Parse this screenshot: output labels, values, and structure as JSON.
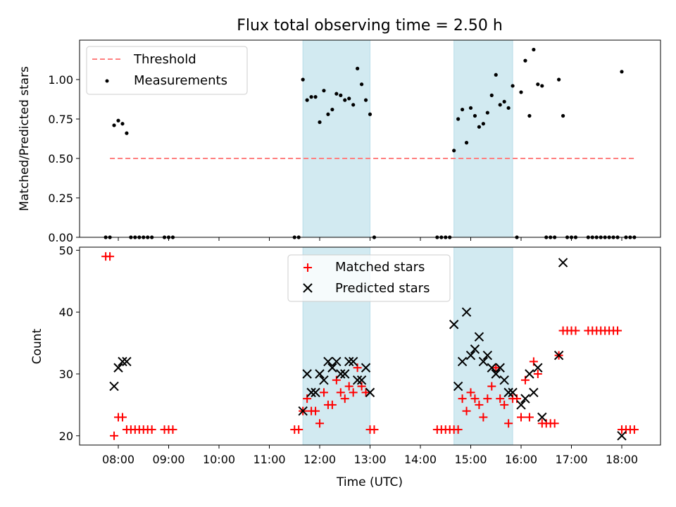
{
  "chart_data": [
    {
      "type": "scatter",
      "title": "Flux total observing time = 2.50 h",
      "xlabel": "",
      "ylabel": "Matched/Predicted stars",
      "ylim": [
        0,
        1.25
      ],
      "yticks": [
        "0.00",
        "0.25",
        "0.50",
        "0.75",
        "1.00"
      ],
      "legend_position": "top-left",
      "shaded_intervals": [
        [
          "11:40",
          "13:00"
        ],
        [
          "14:40",
          "15:50"
        ]
      ],
      "shade_color": "#add8e6",
      "series": [
        {
          "name": "Threshold",
          "style": "dashed-line",
          "color": "#ff7f7f",
          "points": [
            [
              "07:50",
              0.5
            ],
            [
              "18:15",
              0.5
            ]
          ]
        },
        {
          "name": "Measurements",
          "style": "dot",
          "color": "#000000",
          "points": [
            [
              "07:45",
              0
            ],
            [
              "07:50",
              0
            ],
            [
              "07:55",
              0.71
            ],
            [
              "08:00",
              0.74
            ],
            [
              "08:05",
              0.72
            ],
            [
              "08:10",
              0.66
            ],
            [
              "08:15",
              0
            ],
            [
              "08:20",
              0
            ],
            [
              "08:25",
              0
            ],
            [
              "08:30",
              0
            ],
            [
              "08:35",
              0
            ],
            [
              "08:40",
              0
            ],
            [
              "08:55",
              0
            ],
            [
              "09:00",
              0
            ],
            [
              "09:05",
              0
            ],
            [
              "11:30",
              0
            ],
            [
              "11:35",
              0
            ],
            [
              "11:40",
              1.0
            ],
            [
              "11:45",
              0.87
            ],
            [
              "11:50",
              0.89
            ],
            [
              "11:55",
              0.89
            ],
            [
              "12:00",
              0.73
            ],
            [
              "12:05",
              0.93
            ],
            [
              "12:10",
              0.78
            ],
            [
              "12:15",
              0.81
            ],
            [
              "12:20",
              0.91
            ],
            [
              "12:25",
              0.9
            ],
            [
              "12:30",
              0.87
            ],
            [
              "12:35",
              0.88
            ],
            [
              "12:40",
              0.84
            ],
            [
              "12:45",
              1.07
            ],
            [
              "12:50",
              0.97
            ],
            [
              "12:55",
              0.87
            ],
            [
              "13:00",
              0.78
            ],
            [
              "13:05",
              0
            ],
            [
              "14:20",
              0
            ],
            [
              "14:25",
              0
            ],
            [
              "14:30",
              0
            ],
            [
              "14:35",
              0
            ],
            [
              "14:40",
              0.55
            ],
            [
              "14:45",
              0.75
            ],
            [
              "14:50",
              0.81
            ],
            [
              "14:55",
              0.6
            ],
            [
              "15:00",
              0.82
            ],
            [
              "15:05",
              0.77
            ],
            [
              "15:10",
              0.7
            ],
            [
              "15:15",
              0.72
            ],
            [
              "15:20",
              0.79
            ],
            [
              "15:25",
              0.9
            ],
            [
              "15:30",
              1.03
            ],
            [
              "15:35",
              0.84
            ],
            [
              "15:40",
              0.86
            ],
            [
              "15:45",
              0.82
            ],
            [
              "15:50",
              0.96
            ],
            [
              "15:55",
              0
            ],
            [
              "16:00",
              0.92
            ],
            [
              "16:05",
              1.12
            ],
            [
              "16:10",
              0.77
            ],
            [
              "16:15",
              1.19
            ],
            [
              "16:20",
              0.97
            ],
            [
              "16:25",
              0.96
            ],
            [
              "16:30",
              0
            ],
            [
              "16:35",
              0
            ],
            [
              "16:40",
              0
            ],
            [
              "16:45",
              1.0
            ],
            [
              "16:50",
              0.77
            ],
            [
              "16:55",
              0
            ],
            [
              "17:00",
              0
            ],
            [
              "17:05",
              0
            ],
            [
              "17:20",
              0
            ],
            [
              "17:25",
              0
            ],
            [
              "17:30",
              0
            ],
            [
              "17:35",
              0
            ],
            [
              "17:40",
              0
            ],
            [
              "17:45",
              0
            ],
            [
              "17:50",
              0
            ],
            [
              "17:55",
              0
            ],
            [
              "18:00",
              1.05
            ],
            [
              "18:05",
              0
            ],
            [
              "18:10",
              0
            ],
            [
              "18:15",
              0
            ]
          ]
        }
      ]
    },
    {
      "type": "scatter",
      "title": "",
      "xlabel": "Time (UTC)",
      "ylabel": "Count",
      "ylim": [
        18.5,
        50.5
      ],
      "yticks": [
        "20",
        "30",
        "40",
        "50"
      ],
      "xticks": [
        "08:00",
        "09:00",
        "10:00",
        "11:00",
        "12:00",
        "13:00",
        "14:00",
        "15:00",
        "16:00",
        "17:00",
        "18:00"
      ],
      "legend_position": "top-center",
      "shaded_intervals": [
        [
          "11:40",
          "13:00"
        ],
        [
          "14:40",
          "15:50"
        ]
      ],
      "shade_color": "#add8e6",
      "series": [
        {
          "name": "Matched stars",
          "style": "plus",
          "color": "#ff0000",
          "points": [
            [
              "07:45",
              49
            ],
            [
              "07:50",
              49
            ],
            [
              "07:55",
              20
            ],
            [
              "08:00",
              23
            ],
            [
              "08:05",
              23
            ],
            [
              "08:10",
              21
            ],
            [
              "08:15",
              21
            ],
            [
              "08:20",
              21
            ],
            [
              "08:25",
              21
            ],
            [
              "08:30",
              21
            ],
            [
              "08:35",
              21
            ],
            [
              "08:40",
              21
            ],
            [
              "08:55",
              21
            ],
            [
              "09:00",
              21
            ],
            [
              "09:05",
              21
            ],
            [
              "11:30",
              21
            ],
            [
              "11:35",
              21
            ],
            [
              "11:40",
              24
            ],
            [
              "11:45",
              26
            ],
            [
              "11:50",
              24
            ],
            [
              "11:55",
              24
            ],
            [
              "12:00",
              22
            ],
            [
              "12:05",
              27
            ],
            [
              "12:10",
              25
            ],
            [
              "12:15",
              25
            ],
            [
              "12:20",
              29
            ],
            [
              "12:25",
              27
            ],
            [
              "12:30",
              26
            ],
            [
              "12:35",
              28
            ],
            [
              "12:40",
              27
            ],
            [
              "12:45",
              31
            ],
            [
              "12:50",
              28
            ],
            [
              "12:55",
              27
            ],
            [
              "13:00",
              21
            ],
            [
              "13:05",
              21
            ],
            [
              "14:20",
              21
            ],
            [
              "14:25",
              21
            ],
            [
              "14:30",
              21
            ],
            [
              "14:35",
              21
            ],
            [
              "14:40",
              21
            ],
            [
              "14:45",
              21
            ],
            [
              "14:50",
              26
            ],
            [
              "14:55",
              24
            ],
            [
              "15:00",
              27
            ],
            [
              "15:05",
              26
            ],
            [
              "15:10",
              25
            ],
            [
              "15:15",
              23
            ],
            [
              "15:20",
              26
            ],
            [
              "15:25",
              28
            ],
            [
              "15:30",
              31
            ],
            [
              "15:35",
              26
            ],
            [
              "15:40",
              25
            ],
            [
              "15:45",
              22
            ],
            [
              "15:50",
              26
            ],
            [
              "15:55",
              26
            ],
            [
              "16:00",
              23
            ],
            [
              "16:05",
              29
            ],
            [
              "16:10",
              23
            ],
            [
              "16:15",
              32
            ],
            [
              "16:20",
              30
            ],
            [
              "16:25",
              22
            ],
            [
              "16:30",
              22
            ],
            [
              "16:35",
              22
            ],
            [
              "16:40",
              22
            ],
            [
              "16:45",
              33
            ],
            [
              "16:50",
              37
            ],
            [
              "16:55",
              37
            ],
            [
              "17:00",
              37
            ],
            [
              "17:05",
              37
            ],
            [
              "17:20",
              37
            ],
            [
              "17:25",
              37
            ],
            [
              "17:30",
              37
            ],
            [
              "17:35",
              37
            ],
            [
              "17:40",
              37
            ],
            [
              "17:45",
              37
            ],
            [
              "17:50",
              37
            ],
            [
              "17:55",
              37
            ],
            [
              "18:00",
              21
            ],
            [
              "18:05",
              21
            ],
            [
              "18:10",
              21
            ],
            [
              "18:15",
              21
            ]
          ]
        },
        {
          "name": "Predicted stars",
          "style": "x",
          "color": "#000000",
          "points": [
            [
              "07:55",
              28
            ],
            [
              "08:00",
              31
            ],
            [
              "08:05",
              32
            ],
            [
              "08:10",
              32
            ],
            [
              "11:40",
              24
            ],
            [
              "11:45",
              30
            ],
            [
              "11:50",
              27
            ],
            [
              "11:55",
              27
            ],
            [
              "12:00",
              30
            ],
            [
              "12:05",
              29
            ],
            [
              "12:10",
              32
            ],
            [
              "12:15",
              31
            ],
            [
              "12:20",
              32
            ],
            [
              "12:25",
              30
            ],
            [
              "12:30",
              30
            ],
            [
              "12:35",
              32
            ],
            [
              "12:40",
              32
            ],
            [
              "12:45",
              29
            ],
            [
              "12:50",
              29
            ],
            [
              "12:55",
              31
            ],
            [
              "13:00",
              27
            ],
            [
              "14:40",
              38
            ],
            [
              "14:45",
              28
            ],
            [
              "14:50",
              32
            ],
            [
              "14:55",
              40
            ],
            [
              "15:00",
              33
            ],
            [
              "15:05",
              34
            ],
            [
              "15:10",
              36
            ],
            [
              "15:15",
              32
            ],
            [
              "15:20",
              33
            ],
            [
              "15:25",
              31
            ],
            [
              "15:30",
              30
            ],
            [
              "15:35",
              31
            ],
            [
              "15:40",
              29
            ],
            [
              "15:45",
              27
            ],
            [
              "15:50",
              27
            ],
            [
              "16:00",
              25
            ],
            [
              "16:05",
              26
            ],
            [
              "16:10",
              30
            ],
            [
              "16:15",
              27
            ],
            [
              "16:20",
              31
            ],
            [
              "16:25",
              23
            ],
            [
              "16:45",
              33
            ],
            [
              "16:50",
              48
            ],
            [
              "18:00",
              20
            ]
          ]
        }
      ]
    }
  ]
}
